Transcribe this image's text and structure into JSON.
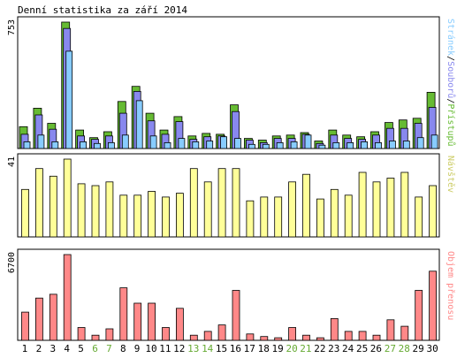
{
  "title": "Denní statistika za září 2014",
  "colors": {
    "pristupu": "#66bb33",
    "souboru": "#8888ee",
    "stranek": "#88ccff",
    "navstev": "#ffff99",
    "objem": "#ff8888",
    "weekday_tick": "#000000",
    "weekend_tick": "#66aa33",
    "bar_stroke": "#000000"
  },
  "chart_data": [
    {
      "type": "bar",
      "ymax_label": "753",
      "ylim": [
        0,
        753
      ],
      "legend": {
        "parts": [
          "Stránek",
          "Souborů",
          "Přístupů"
        ],
        "separator": "/"
      },
      "categories": [
        "1",
        "2",
        "3",
        "4",
        "5",
        "6",
        "7",
        "8",
        "9",
        "10",
        "11",
        "12",
        "13",
        "14",
        "15",
        "16",
        "17",
        "18",
        "19",
        "20",
        "21",
        "22",
        "23",
        "24",
        "25",
        "26",
        "27",
        "28",
        "29",
        "30"
      ],
      "weekend_days": [
        "6",
        "7",
        "13",
        "14",
        "20",
        "21",
        "27",
        "28"
      ],
      "series": [
        {
          "name": "Přístupů",
          "values": [
            130,
            240,
            150,
            753,
            110,
            65,
            100,
            280,
            370,
            210,
            110,
            190,
            75,
            90,
            85,
            260,
            60,
            50,
            75,
            80,
            95,
            45,
            110,
            80,
            70,
            100,
            155,
            170,
            180,
            335
          ]
        },
        {
          "name": "Souborů",
          "values": [
            85,
            200,
            115,
            715,
            75,
            55,
            75,
            210,
            340,
            165,
            85,
            160,
            55,
            70,
            75,
            220,
            50,
            35,
            60,
            60,
            85,
            30,
            80,
            60,
            55,
            80,
            120,
            120,
            150,
            245
          ]
        },
        {
          "name": "Stránek",
          "values": [
            40,
            80,
            40,
            580,
            40,
            30,
            35,
            80,
            285,
            75,
            35,
            60,
            40,
            45,
            70,
            60,
            25,
            25,
            35,
            40,
            80,
            20,
            35,
            35,
            40,
            35,
            45,
            45,
            65,
            80
          ]
        }
      ]
    },
    {
      "type": "bar",
      "ymax_label": "41",
      "ylim": [
        0,
        41
      ],
      "legend": {
        "parts": [
          "Návštěv"
        ],
        "separator": ""
      },
      "categories": [
        "1",
        "2",
        "3",
        "4",
        "5",
        "6",
        "7",
        "8",
        "9",
        "10",
        "11",
        "12",
        "13",
        "14",
        "15",
        "16",
        "17",
        "18",
        "19",
        "20",
        "21",
        "22",
        "23",
        "24",
        "25",
        "26",
        "27",
        "28",
        "29",
        "30"
      ],
      "series": [
        {
          "name": "Návštěv",
          "values": [
            25,
            36,
            32,
            41,
            28,
            27,
            29,
            22,
            22,
            24,
            21,
            23,
            36,
            29,
            36,
            36,
            19,
            21,
            21,
            29,
            33,
            20,
            25,
            22,
            34,
            29,
            31,
            34,
            21,
            27
          ]
        }
      ]
    },
    {
      "type": "bar",
      "ymax_label": "6700",
      "ylim": [
        0,
        6700
      ],
      "legend": {
        "parts": [
          "Objem přenosu"
        ],
        "separator": ""
      },
      "categories": [
        "1",
        "2",
        "3",
        "4",
        "5",
        "6",
        "7",
        "8",
        "9",
        "10",
        "11",
        "12",
        "13",
        "14",
        "15",
        "16",
        "17",
        "18",
        "19",
        "20",
        "21",
        "22",
        "23",
        "24",
        "25",
        "26",
        "27",
        "28",
        "29",
        "30"
      ],
      "series": [
        {
          "name": "Objem přenosu",
          "values": [
            2200,
            3300,
            3600,
            6700,
            1000,
            400,
            900,
            4100,
            2900,
            2900,
            1000,
            2500,
            400,
            700,
            1200,
            3900,
            500,
            300,
            200,
            1000,
            400,
            200,
            1700,
            700,
            700,
            400,
            1600,
            1100,
            3900,
            5400
          ]
        }
      ]
    }
  ]
}
